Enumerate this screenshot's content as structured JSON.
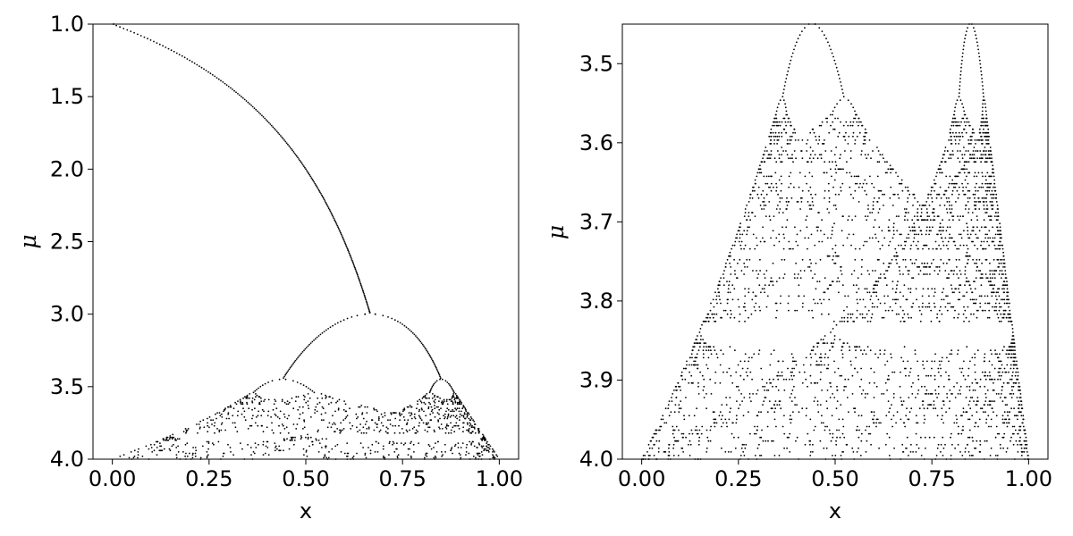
{
  "chart_data": [
    {
      "type": "scatter",
      "title": "",
      "xlabel": "x",
      "ylabel": "μ",
      "xlim": [
        -0.05,
        1.05
      ],
      "ylim": [
        4.0,
        1.0
      ],
      "y_inverted": true,
      "grid": false,
      "legend": "none",
      "point_color": "#000000",
      "x_ticks": [
        {
          "value": 0.0,
          "label": "0.00"
        },
        {
          "value": 0.25,
          "label": "0.25"
        },
        {
          "value": 0.5,
          "label": "0.50"
        },
        {
          "value": 0.75,
          "label": "0.75"
        },
        {
          "value": 1.0,
          "label": "1.00"
        }
      ],
      "y_ticks": [
        {
          "value": 1.0,
          "label": "1.0"
        },
        {
          "value": 1.5,
          "label": "1.5"
        },
        {
          "value": 2.0,
          "label": "2.0"
        },
        {
          "value": 2.5,
          "label": "2.5"
        },
        {
          "value": 3.0,
          "label": "3.0"
        },
        {
          "value": 3.5,
          "label": "3.5"
        },
        {
          "value": 4.0,
          "label": "4.0"
        }
      ],
      "series": [
        {
          "generator": "logistic_map",
          "mu_range": [
            1.0,
            4.0
          ],
          "mu_steps": 300,
          "transient_iterations": 300,
          "kept_iterations": 24
        }
      ]
    },
    {
      "type": "scatter",
      "title": "",
      "xlabel": "x",
      "ylabel": "μ",
      "xlim": [
        -0.05,
        1.05
      ],
      "ylim": [
        4.0,
        3.45
      ],
      "y_inverted": true,
      "grid": false,
      "legend": "none",
      "point_color": "#000000",
      "x_ticks": [
        {
          "value": 0.0,
          "label": "0.00"
        },
        {
          "value": 0.25,
          "label": "0.25"
        },
        {
          "value": 0.5,
          "label": "0.50"
        },
        {
          "value": 0.75,
          "label": "0.75"
        },
        {
          "value": 1.0,
          "label": "1.00"
        }
      ],
      "y_ticks": [
        {
          "value": 3.5,
          "label": "3.5"
        },
        {
          "value": 3.6,
          "label": "3.6"
        },
        {
          "value": 3.7,
          "label": "3.7"
        },
        {
          "value": 3.8,
          "label": "3.8"
        },
        {
          "value": 3.9,
          "label": "3.9"
        },
        {
          "value": 4.0,
          "label": "4.0"
        }
      ],
      "series": [
        {
          "generator": "logistic_map",
          "mu_range": [
            3.45,
            4.0
          ],
          "mu_steps": 120,
          "transient_iterations": 300,
          "kept_iterations": 40
        }
      ]
    }
  ]
}
